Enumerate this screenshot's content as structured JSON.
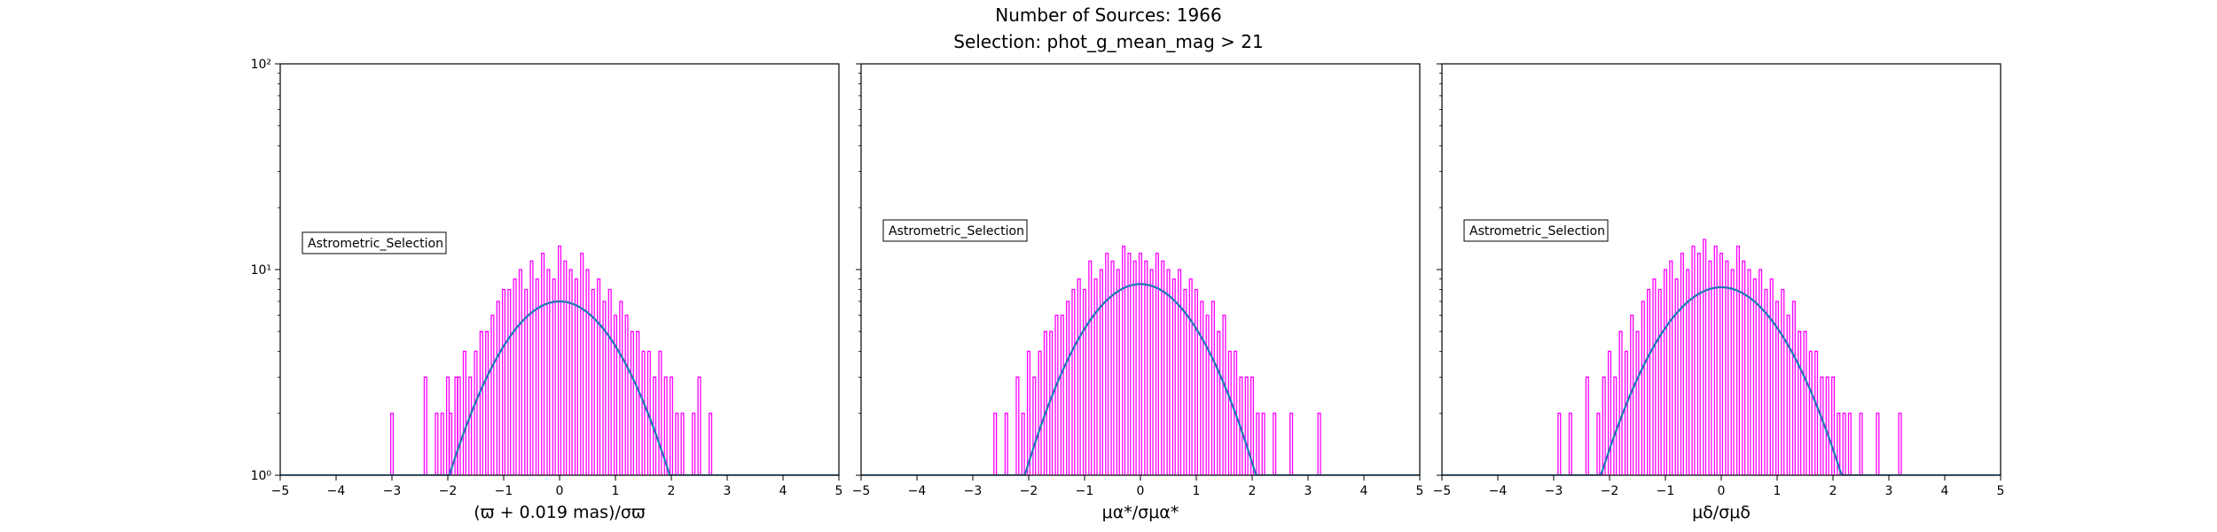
{
  "figure": {
    "title_line1": "Number of Sources: 1966",
    "title_line2": "Selection: phot_g_mean_mag > 21",
    "colors": {
      "histogram": "#ff00ff",
      "fit": "#1f77b4",
      "axes": "#000000"
    }
  },
  "chart_data": [
    {
      "type": "histogram",
      "xlabel": "(ϖ + 0.019 mas)/σϖ",
      "xlim": [
        -5,
        5
      ],
      "ylim": [
        1,
        100
      ],
      "yscale": "log",
      "xticks": [
        "−5",
        "−4",
        "−3",
        "−2",
        "−1",
        "0",
        "1",
        "2",
        "3",
        "4",
        "5"
      ],
      "yticks": [
        "10⁰",
        "10¹",
        "10²"
      ],
      "legend": {
        "label": "Astrometric_Selection",
        "placement": "center-left"
      },
      "series": [
        {
          "name": "Astrometric_Selection",
          "kind": "histogram",
          "x": [
            -3.0,
            -2.4,
            -2.2,
            -2.1,
            -2.0,
            -1.95,
            -1.85,
            -1.8,
            -1.7,
            -1.6,
            -1.5,
            -1.4,
            -1.3,
            -1.2,
            -1.1,
            -1.0,
            -0.9,
            -0.8,
            -0.7,
            -0.6,
            -0.5,
            -0.4,
            -0.3,
            -0.2,
            -0.1,
            0.0,
            0.1,
            0.2,
            0.3,
            0.4,
            0.5,
            0.6,
            0.7,
            0.8,
            0.9,
            1.0,
            1.1,
            1.2,
            1.3,
            1.4,
            1.5,
            1.6,
            1.7,
            1.8,
            1.9,
            2.0,
            2.1,
            2.2,
            2.4,
            2.5,
            2.7
          ],
          "counts": [
            2,
            3,
            2,
            2,
            3,
            2,
            3,
            3,
            4,
            3,
            4,
            5,
            5,
            6,
            7,
            8,
            8,
            9,
            10,
            8,
            11,
            9,
            12,
            10,
            9,
            13,
            11,
            10,
            9,
            12,
            10,
            8,
            9,
            7,
            8,
            6,
            7,
            6,
            5,
            5,
            4,
            4,
            3,
            4,
            3,
            3,
            2,
            2,
            2,
            3,
            2
          ]
        },
        {
          "kind": "gaussian-fit",
          "amplitude": 7.0,
          "center": 0.0,
          "sigma": 1.0
        }
      ]
    },
    {
      "type": "histogram",
      "xlabel": "μα*/σμα*",
      "xlim": [
        -5,
        5
      ],
      "ylim": [
        1,
        100
      ],
      "yscale": "log",
      "xticks": [
        "−5",
        "−4",
        "−3",
        "−2",
        "−1",
        "0",
        "1",
        "2",
        "3",
        "4",
        "5"
      ],
      "yticks": [],
      "legend": {
        "label": "Astrometric_Selection",
        "placement": "center-left"
      },
      "series": [
        {
          "name": "Astrometric_Selection",
          "kind": "histogram",
          "x": [
            -2.6,
            -2.4,
            -2.2,
            -2.1,
            -2.0,
            -1.9,
            -1.8,
            -1.7,
            -1.6,
            -1.5,
            -1.4,
            -1.3,
            -1.2,
            -1.1,
            -1.0,
            -0.9,
            -0.8,
            -0.7,
            -0.6,
            -0.5,
            -0.4,
            -0.3,
            -0.2,
            -0.1,
            0.0,
            0.1,
            0.2,
            0.3,
            0.4,
            0.5,
            0.6,
            0.7,
            0.8,
            0.9,
            1.0,
            1.1,
            1.2,
            1.3,
            1.4,
            1.5,
            1.6,
            1.7,
            1.8,
            1.9,
            2.0,
            2.1,
            2.2,
            2.4,
            2.7,
            3.2
          ],
          "counts": [
            2,
            2,
            3,
            2,
            4,
            3,
            4,
            5,
            5,
            6,
            6,
            7,
            8,
            9,
            8,
            11,
            9,
            10,
            12,
            11,
            10,
            13,
            12,
            11,
            12,
            11,
            10,
            12,
            11,
            10,
            9,
            10,
            8,
            9,
            8,
            7,
            6,
            7,
            5,
            6,
            4,
            4,
            3,
            3,
            3,
            2,
            2,
            2,
            2,
            2
          ]
        },
        {
          "kind": "gaussian-fit",
          "amplitude": 8.5,
          "center": 0.0,
          "sigma": 1.0
        }
      ]
    },
    {
      "type": "histogram",
      "xlabel": "μδ/σμδ",
      "xlim": [
        -5,
        5
      ],
      "ylim": [
        1,
        100
      ],
      "yscale": "log",
      "xticks": [
        "−5",
        "−4",
        "−3",
        "−2",
        "−1",
        "0",
        "1",
        "2",
        "3",
        "4",
        "5"
      ],
      "yticks": [],
      "legend": {
        "label": "Astrometric_Selection",
        "placement": "center-left"
      },
      "series": [
        {
          "name": "Astrometric_Selection",
          "kind": "histogram",
          "x": [
            -2.9,
            -2.7,
            -2.4,
            -2.2,
            -2.1,
            -2.0,
            -1.9,
            -1.8,
            -1.7,
            -1.6,
            -1.5,
            -1.4,
            -1.3,
            -1.2,
            -1.1,
            -1.0,
            -0.9,
            -0.8,
            -0.7,
            -0.6,
            -0.5,
            -0.4,
            -0.3,
            -0.2,
            -0.1,
            0.0,
            0.1,
            0.2,
            0.3,
            0.4,
            0.5,
            0.6,
            0.7,
            0.8,
            0.9,
            1.0,
            1.1,
            1.2,
            1.3,
            1.4,
            1.5,
            1.6,
            1.7,
            1.8,
            1.9,
            2.0,
            2.1,
            2.2,
            2.3,
            2.5,
            2.8,
            3.2
          ],
          "counts": [
            2,
            2,
            3,
            2,
            3,
            4,
            3,
            5,
            4,
            6,
            5,
            7,
            8,
            9,
            8,
            10,
            11,
            9,
            12,
            10,
            13,
            12,
            14,
            11,
            13,
            12,
            11,
            10,
            13,
            11,
            10,
            9,
            10,
            8,
            9,
            7,
            8,
            6,
            7,
            5,
            5,
            4,
            4,
            3,
            3,
            3,
            2,
            2,
            2,
            2,
            2,
            2
          ]
        },
        {
          "kind": "gaussian-fit",
          "amplitude": 8.2,
          "center": 0.0,
          "sigma": 1.05
        }
      ]
    }
  ]
}
